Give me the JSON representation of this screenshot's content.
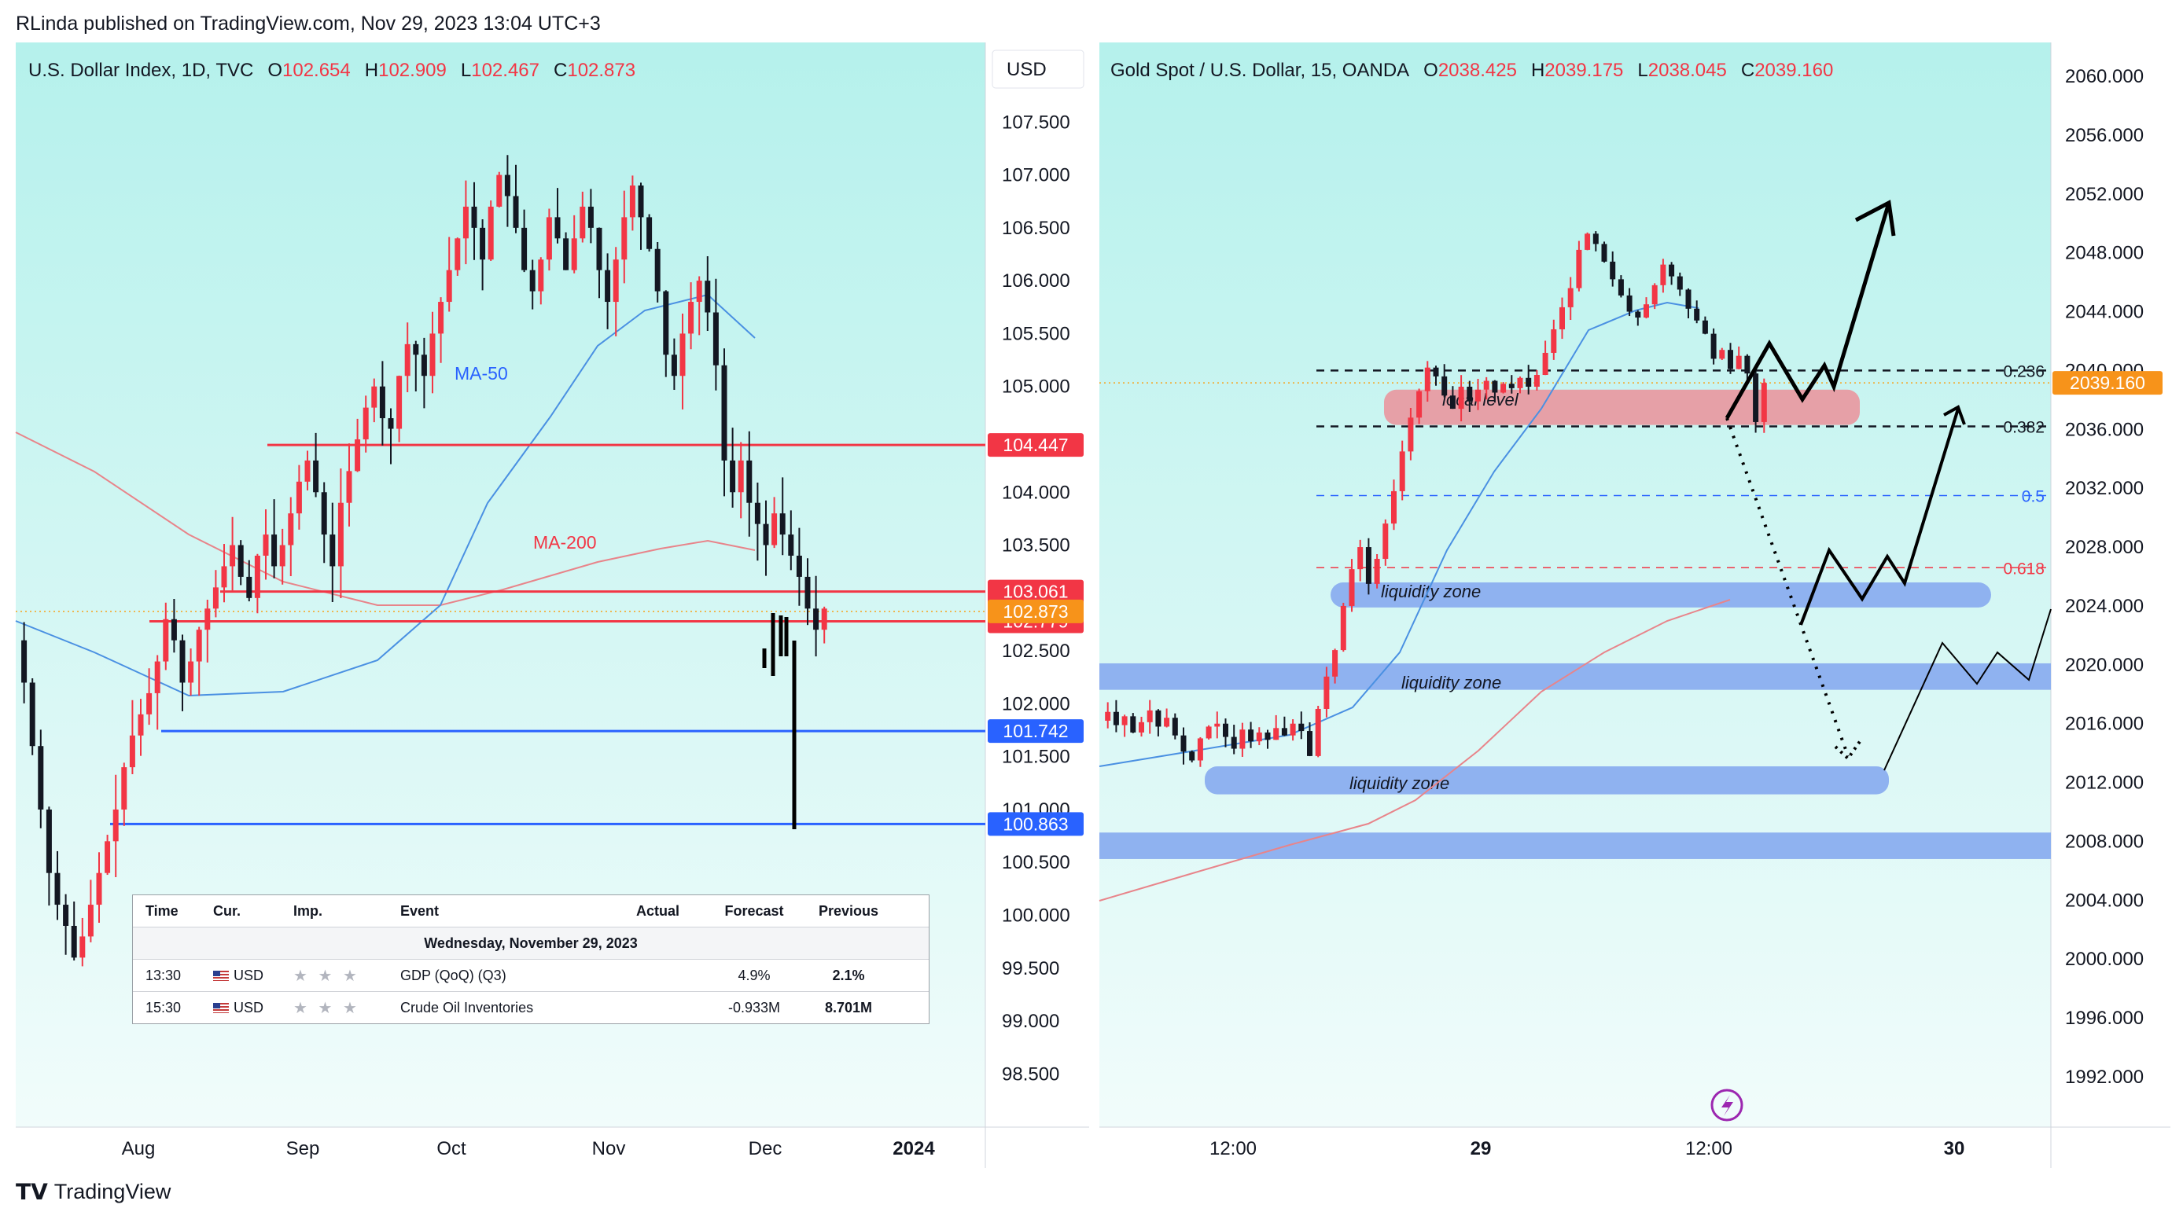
{
  "header": {
    "publisher": "RLinda published on TradingView.com, Nov 29, 2023 13:04 UTC+3"
  },
  "footer": {
    "brand": "TradingView"
  },
  "colors": {
    "bull": "#f23645",
    "bear": "#131722",
    "ma50": "#4a90e2",
    "ma200": "#e8848a",
    "resistance": "#f23645",
    "support": "#2962ff",
    "liquidity": "#8fb2f0",
    "local": "#e6a0a7"
  },
  "left": {
    "legend": {
      "name": "U.S. Dollar Index, 1D, TVC",
      "o_label": "O",
      "o": "102.654",
      "h_label": "H",
      "h": "102.909",
      "l_label": "L",
      "l": "102.467",
      "c_label": "C",
      "c": "102.873"
    },
    "currency_button": "USD",
    "labels": {
      "ma50": "MA-50",
      "ma200": "MA-200"
    },
    "price_labels": [
      "107.500",
      "107.000",
      "106.500",
      "106.000",
      "105.500",
      "105.000",
      "104.000",
      "103.500",
      "102.500",
      "102.000",
      "101.500",
      "101.000",
      "100.500",
      "100.000",
      "99.500",
      "99.000",
      "98.500"
    ],
    "level_badges": [
      {
        "value": "104.447",
        "kind": "resistance"
      },
      {
        "value": "103.061",
        "kind": "resistance"
      },
      {
        "value": "102.873",
        "kind": "current"
      },
      {
        "value": "102.779",
        "kind": "resistance"
      },
      {
        "value": "101.742",
        "kind": "support"
      },
      {
        "value": "100.863",
        "kind": "support"
      }
    ],
    "time_labels": [
      "Aug",
      "Sep",
      "Oct",
      "Nov",
      "Dec",
      "2024"
    ],
    "calendar": {
      "headers": [
        "Time",
        "Cur.",
        "Imp.",
        "Event",
        "Actual",
        "Forecast",
        "Previous"
      ],
      "date": "Wednesday, November 29, 2023",
      "rows": [
        {
          "time": "13:30",
          "cur": "USD",
          "imp": "★ ★ ★",
          "event": "GDP (QoQ) (Q3)",
          "actual": "",
          "forecast": "4.9%",
          "previous": "2.1%"
        },
        {
          "time": "15:30",
          "cur": "USD",
          "imp": "★ ★ ★",
          "event": "Crude Oil Inventories",
          "actual": "",
          "forecast": "-0.933M",
          "previous": "8.701M"
        }
      ]
    }
  },
  "right": {
    "legend": {
      "name": "Gold Spot / U.S. Dollar, 15, OANDA",
      "o_label": "O",
      "o": "2038.425",
      "h_label": "H",
      "h": "2039.175",
      "l_label": "L",
      "l": "2038.045",
      "c_label": "C",
      "c": "2039.160"
    },
    "price_labels": [
      "2060.000",
      "2056.000",
      "2052.000",
      "2048.000",
      "2044.000",
      "2040.000",
      "2036.000",
      "2032.000",
      "2028.000",
      "2024.000",
      "2020.000",
      "2016.000",
      "2012.000",
      "2008.000",
      "2004.000",
      "2000.000",
      "1996.000",
      "1992.000"
    ],
    "current_badge": "2039.160",
    "fib": [
      {
        "label": "0.236",
        "value": 2040
      },
      {
        "label": "0.382",
        "value": 2036.2
      },
      {
        "label": "0.5",
        "value": 2031.5
      },
      {
        "label": "0.618",
        "value": 2026.6
      }
    ],
    "zones": {
      "local": "local level",
      "liquidity": "liquidity zone"
    },
    "time_labels": [
      "12:00",
      "29",
      "12:00",
      "30"
    ]
  },
  "chart_data": [
    {
      "type": "candlestick",
      "title": "U.S. Dollar Index, 1D, TVC",
      "ylim": [
        98.25,
        108.0
      ],
      "x_ticks": [
        "Aug",
        "Sep",
        "Oct",
        "Nov",
        "Dec",
        "2024"
      ],
      "ohlc": {
        "open": 102.654,
        "high": 102.909,
        "low": 102.467,
        "close": 102.873
      },
      "overlays": [
        "MA-50",
        "MA-200"
      ],
      "levels": {
        "resistance": [
          104.447,
          103.061,
          102.779
        ],
        "support": [
          101.742,
          100.863
        ],
        "current": 102.873
      },
      "annotations": [
        "MA-50",
        "MA-200"
      ],
      "closes": [
        102.6,
        102.2,
        101.6,
        101.0,
        100.4,
        100.1,
        99.9,
        99.6,
        99.8,
        100.1,
        100.4,
        100.7,
        101.0,
        101.4,
        101.7,
        101.9,
        102.1,
        102.4,
        102.8,
        102.6,
        102.2,
        102.4,
        102.7,
        102.9,
        103.1,
        103.3,
        103.5,
        103.2,
        103.0,
        103.4,
        103.6,
        103.3,
        103.5,
        103.8,
        104.1,
        104.3,
        104.0,
        103.6,
        103.3,
        103.9,
        104.2,
        104.5,
        104.8,
        105.0,
        104.7,
        104.6,
        105.1,
        105.4,
        105.3,
        105.1,
        105.5,
        105.8,
        106.1,
        106.4,
        106.7,
        106.5,
        106.2,
        106.7,
        107.0,
        106.8,
        106.5,
        106.1,
        105.9,
        106.2,
        106.6,
        106.4,
        106.1,
        106.4,
        106.7,
        106.5,
        106.1,
        105.8,
        106.2,
        106.6,
        106.9,
        106.6,
        106.3,
        105.9,
        105.3,
        105.1,
        105.5,
        105.8,
        106.0,
        105.7,
        105.2,
        104.3,
        104.0,
        104.3,
        103.9,
        103.7,
        103.5,
        103.8,
        103.6,
        103.4,
        103.2,
        102.9,
        102.7,
        102.9
      ]
    },
    {
      "type": "candlestick",
      "title": "Gold Spot / U.S. Dollar, 15, OANDA",
      "ylim": [
        1988.5,
        2063.0
      ],
      "x_ticks": [
        "12:00",
        "29",
        "12:00",
        "30"
      ],
      "ohlc": {
        "open": 2038.425,
        "high": 2039.175,
        "low": 2038.045,
        "close": 2039.16
      },
      "fib_levels": {
        "0.236": 2040,
        "0.382": 2036.2,
        "0.5": 2031.5,
        "0.618": 2026.6
      },
      "zones": [
        {
          "label": "local level",
          "from": 2036.3,
          "to": 2038.7
        },
        {
          "label": "liquidity zone",
          "from": 2023.9,
          "to": 2025.6
        },
        {
          "label": "liquidity zone",
          "from": 2018.3,
          "to": 2020.1
        },
        {
          "label": "liquidity zone",
          "from": 2011.2,
          "to": 2013.1
        },
        {
          "label": "",
          "from": 2006.8,
          "to": 2008.6
        }
      ],
      "closes": [
        2016.2,
        2016.8,
        2015.9,
        2016.5,
        2015.4,
        2016.1,
        2016.9,
        2015.8,
        2016.4,
        2015.2,
        2014.1,
        2013.5,
        2015.0,
        2015.8,
        2016.0,
        2015.1,
        2014.3,
        2015.6,
        2014.8,
        2015.4,
        2014.9,
        2015.7,
        2015.2,
        2016.0,
        2015.5,
        2013.8,
        2017.0,
        2019.2,
        2021.0,
        2024.0,
        2026.5,
        2028.0,
        2025.5,
        2027.2,
        2029.6,
        2031.8,
        2034.5,
        2036.8,
        2038.6,
        2040.2,
        2039.6,
        2038.3,
        2037.4,
        2038.9,
        2037.9,
        2038.7,
        2039.3,
        2038.5,
        2039.1,
        2038.8,
        2039.5,
        2038.9,
        2039.7,
        2041.2,
        2042.8,
        2044.3,
        2045.6,
        2048.2,
        2049.3,
        2048.6,
        2047.4,
        2046.2,
        2045.1,
        2044.0,
        2043.6,
        2044.5,
        2045.8,
        2047.2,
        2046.4,
        2045.5,
        2044.2,
        2043.4,
        2042.5,
        2040.8,
        2041.4,
        2040.1,
        2041.0,
        2039.8,
        2036.5,
        2039.16
      ]
    }
  ]
}
